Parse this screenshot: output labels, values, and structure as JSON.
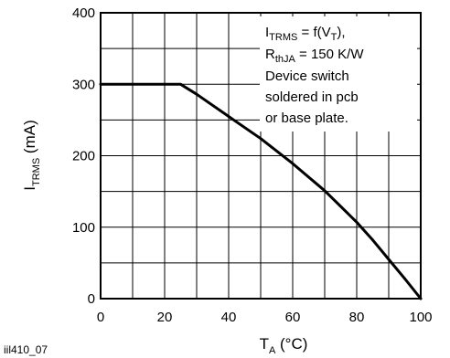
{
  "figure_id": "iil410_07",
  "chart_data": {
    "type": "line",
    "xlim": [
      0,
      100
    ],
    "ylim": [
      0,
      400
    ],
    "x_ticks": [
      0,
      20,
      40,
      60,
      80,
      100
    ],
    "y_ticks": [
      0,
      100,
      200,
      300,
      400
    ],
    "x_minor_step": 10,
    "y_minor_step": 50,
    "grid": true,
    "xlabel": {
      "main": "T",
      "sub": "A",
      "tail": " (°C)"
    },
    "ylabel": {
      "main": "I",
      "sub": "TRMS",
      "tail": " (mA)"
    },
    "annotation": {
      "line1": {
        "a": "I",
        "a_sub": "TRMS",
        "b": " = f(V",
        "b_sub": "T",
        "c": "),"
      },
      "line2": {
        "a": "R",
        "a_sub": "thJA",
        "b": " = 150 K/W"
      },
      "line3": "Device switch",
      "line4": "soldered in pcb",
      "line5": "or base plate."
    },
    "series": [
      {
        "color": "#000000",
        "x": [
          0,
          25,
          30,
          40,
          50,
          60,
          70,
          80,
          85,
          90,
          95,
          100
        ],
        "y": [
          300,
          300,
          286,
          255,
          224,
          189,
          151,
          107,
          82,
          55,
          28,
          0
        ]
      }
    ]
  }
}
